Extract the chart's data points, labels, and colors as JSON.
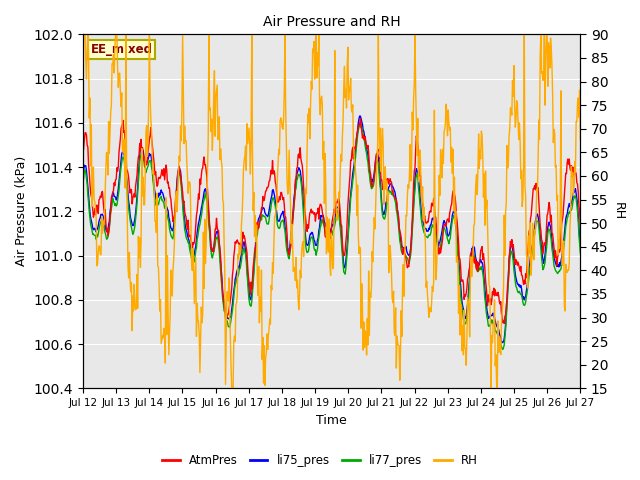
{
  "title": "Air Pressure and RH",
  "xlabel": "Time",
  "ylabel_left": "Air Pressure (kPa)",
  "ylabel_right": "RH",
  "annotation": "EE_mixed",
  "ylim_left": [
    100.4,
    102.0
  ],
  "ylim_right": [
    15,
    90
  ],
  "yticks_left": [
    100.4,
    100.6,
    100.8,
    101.0,
    101.2,
    101.4,
    101.6,
    101.8,
    102.0
  ],
  "yticks_right": [
    15,
    20,
    25,
    30,
    35,
    40,
    45,
    50,
    55,
    60,
    65,
    70,
    75,
    80,
    85,
    90
  ],
  "xtick_labels": [
    "Jul 12",
    "Jul 13",
    "Jul 14",
    "Jul 15",
    "Jul 16",
    "Jul 17",
    "Jul 18",
    "Jul 19",
    "Jul 20",
    "Jul 21",
    "Jul 22",
    "Jul 23",
    "Jul 24",
    "Jul 25",
    "Jul 26",
    "Jul 27"
  ],
  "colors": {
    "AtmPres": "#ff0000",
    "li75_pres": "#0000ff",
    "li77_pres": "#00aa00",
    "RH": "#ffaa00"
  },
  "bg_color": "#e8e8e8",
  "fig_color": "#ffffff",
  "annotation_bg": "#ffffcc",
  "annotation_border": "#aaaa00",
  "annotation_text_color": "#880000",
  "n_points": 720
}
